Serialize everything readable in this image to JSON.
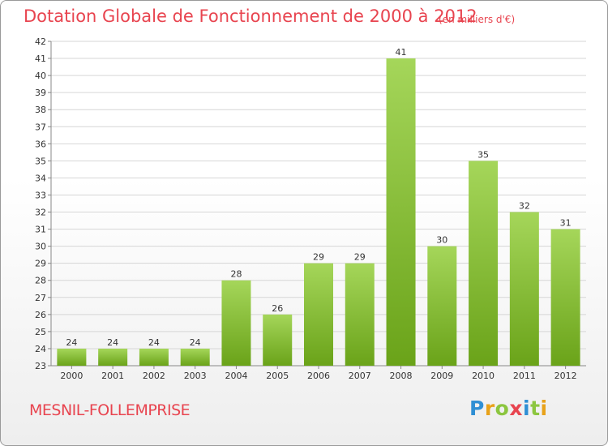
{
  "header": {
    "title": "Dotation Globale de Fonctionnement de 2000 à 2012",
    "unit": "(en milliers d'€)"
  },
  "footer": {
    "commune": "MESNIL-FOLLEMPRISE",
    "brand": "Proxiti",
    "brand_letters": [
      {
        "ch": "P",
        "color": "#2f8fd4"
      },
      {
        "ch": "r",
        "color": "#e8a21a"
      },
      {
        "ch": "o",
        "color": "#8cc63f"
      },
      {
        "ch": "x",
        "color": "#e8444f"
      },
      {
        "ch": "i",
        "color": "#2f8fd4"
      },
      {
        "ch": "t",
        "color": "#8cc63f"
      },
      {
        "ch": "i",
        "color": "#e8a21a"
      }
    ]
  },
  "colors": {
    "title": "#e8444f",
    "bar_light": "#a5d65a",
    "bar_dark": "#6aa319",
    "grid": "#d6d6d6",
    "axis": "#888888",
    "text": "#333333"
  },
  "chart_data": {
    "type": "bar",
    "title": "Dotation Globale de Fonctionnement de 2000 à 2012",
    "subtitle": "(en milliers d'€)",
    "xlabel": "",
    "ylabel": "",
    "categories": [
      "2000",
      "2001",
      "2002",
      "2003",
      "2004",
      "2005",
      "2006",
      "2007",
      "2008",
      "2009",
      "2010",
      "2011",
      "2012"
    ],
    "values": [
      24,
      24,
      24,
      24,
      28,
      26,
      29,
      29,
      41,
      30,
      35,
      32,
      31
    ],
    "ylim": [
      23,
      42
    ],
    "yticks": [
      23,
      24,
      25,
      26,
      27,
      28,
      29,
      30,
      31,
      32,
      33,
      34,
      35,
      36,
      37,
      38,
      39,
      40,
      41,
      42
    ],
    "grid": true,
    "data_labels": true
  }
}
